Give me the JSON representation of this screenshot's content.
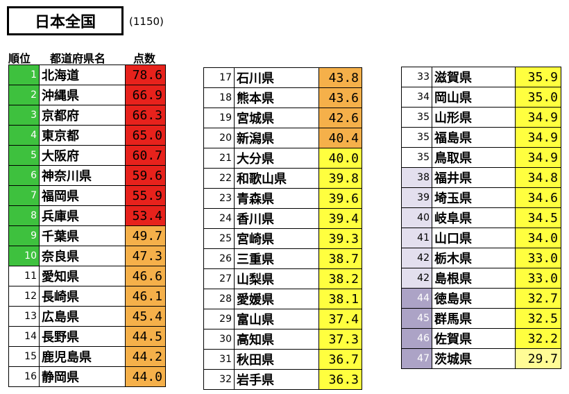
{
  "title": "日本全国",
  "total": "(1150)",
  "headers": {
    "rank": "順位",
    "prefecture": "都道府県名",
    "score": "点数"
  },
  "colors": {
    "top10_rank": "#3ec13e",
    "high_score": "#e7221c",
    "mid_score": "#f5b04a",
    "low_score": "#ffff3f",
    "lowest_score": "#fffc96",
    "bottom_rank_light": "#e3dfee",
    "bottom_rank_dark": "#aca3c6"
  },
  "columns": [
    {
      "rows": [
        {
          "rank": "1",
          "pref": "北海道",
          "score": "78.6",
          "rc": "g",
          "sc": "r"
        },
        {
          "rank": "2",
          "pref": "沖縄県",
          "score": "66.9",
          "rc": "g",
          "sc": "r"
        },
        {
          "rank": "3",
          "pref": "京都府",
          "score": "66.3",
          "rc": "g",
          "sc": "r"
        },
        {
          "rank": "4",
          "pref": "東京都",
          "score": "65.0",
          "rc": "g",
          "sc": "r"
        },
        {
          "rank": "5",
          "pref": "大阪府",
          "score": "60.7",
          "rc": "g",
          "sc": "r"
        },
        {
          "rank": "6",
          "pref": "神奈川県",
          "score": "59.6",
          "rc": "g",
          "sc": "r"
        },
        {
          "rank": "7",
          "pref": "福岡県",
          "score": "55.9",
          "rc": "g",
          "sc": "r"
        },
        {
          "rank": "8",
          "pref": "兵庫県",
          "score": "53.4",
          "rc": "g",
          "sc": "r"
        },
        {
          "rank": "9",
          "pref": "千葉県",
          "score": "49.7",
          "rc": "g",
          "sc": "o"
        },
        {
          "rank": "10",
          "pref": "奈良県",
          "score": "47.3",
          "rc": "g",
          "sc": "o"
        },
        {
          "rank": "11",
          "pref": "愛知県",
          "score": "46.6",
          "rc": "",
          "sc": "o"
        },
        {
          "rank": "12",
          "pref": "長崎県",
          "score": "46.1",
          "rc": "",
          "sc": "o"
        },
        {
          "rank": "13",
          "pref": "広島県",
          "score": "45.4",
          "rc": "",
          "sc": "o"
        },
        {
          "rank": "14",
          "pref": "長野県",
          "score": "44.5",
          "rc": "",
          "sc": "o"
        },
        {
          "rank": "15",
          "pref": "鹿児島県",
          "score": "44.2",
          "rc": "",
          "sc": "o"
        },
        {
          "rank": "16",
          "pref": "静岡県",
          "score": "44.0",
          "rc": "",
          "sc": "o"
        }
      ]
    },
    {
      "rows": [
        {
          "rank": "17",
          "pref": "石川県",
          "score": "43.8",
          "rc": "",
          "sc": "o"
        },
        {
          "rank": "18",
          "pref": "熊本県",
          "score": "43.6",
          "rc": "",
          "sc": "o"
        },
        {
          "rank": "19",
          "pref": "宮城県",
          "score": "42.6",
          "rc": "",
          "sc": "o"
        },
        {
          "rank": "20",
          "pref": "新潟県",
          "score": "40.4",
          "rc": "",
          "sc": "o"
        },
        {
          "rank": "21",
          "pref": "大分県",
          "score": "40.0",
          "rc": "",
          "sc": "y"
        },
        {
          "rank": "22",
          "pref": "和歌山県",
          "score": "39.8",
          "rc": "",
          "sc": "y"
        },
        {
          "rank": "23",
          "pref": "青森県",
          "score": "39.6",
          "rc": "",
          "sc": "y"
        },
        {
          "rank": "24",
          "pref": "香川県",
          "score": "39.4",
          "rc": "",
          "sc": "y"
        },
        {
          "rank": "25",
          "pref": "宮崎県",
          "score": "39.3",
          "rc": "",
          "sc": "y"
        },
        {
          "rank": "26",
          "pref": "三重県",
          "score": "38.7",
          "rc": "",
          "sc": "y"
        },
        {
          "rank": "27",
          "pref": "山梨県",
          "score": "38.2",
          "rc": "",
          "sc": "y"
        },
        {
          "rank": "28",
          "pref": "愛媛県",
          "score": "38.1",
          "rc": "",
          "sc": "y"
        },
        {
          "rank": "29",
          "pref": "富山県",
          "score": "37.4",
          "rc": "",
          "sc": "y"
        },
        {
          "rank": "30",
          "pref": "高知県",
          "score": "37.3",
          "rc": "",
          "sc": "y"
        },
        {
          "rank": "31",
          "pref": "秋田県",
          "score": "36.7",
          "rc": "",
          "sc": "y"
        },
        {
          "rank": "32",
          "pref": "岩手県",
          "score": "36.3",
          "rc": "",
          "sc": "y"
        }
      ]
    },
    {
      "rows": [
        {
          "rank": "33",
          "pref": "滋賀県",
          "score": "35.9",
          "rc": "",
          "sc": "y"
        },
        {
          "rank": "34",
          "pref": "岡山県",
          "score": "35.0",
          "rc": "",
          "sc": "y"
        },
        {
          "rank": "35",
          "pref": "山形県",
          "score": "34.9",
          "rc": "",
          "sc": "y"
        },
        {
          "rank": "35",
          "pref": "福島県",
          "score": "34.9",
          "rc": "",
          "sc": "y"
        },
        {
          "rank": "35",
          "pref": "鳥取県",
          "score": "34.9",
          "rc": "",
          "sc": "y"
        },
        {
          "rank": "38",
          "pref": "福井県",
          "score": "34.8",
          "rc": "lv",
          "sc": "y"
        },
        {
          "rank": "39",
          "pref": "埼玉県",
          "score": "34.6",
          "rc": "lv",
          "sc": "y"
        },
        {
          "rank": "40",
          "pref": "岐阜県",
          "score": "34.5",
          "rc": "lv",
          "sc": "y"
        },
        {
          "rank": "41",
          "pref": "山口県",
          "score": "34.0",
          "rc": "lv",
          "sc": "y"
        },
        {
          "rank": "42",
          "pref": "栃木県",
          "score": "33.0",
          "rc": "lv",
          "sc": "y"
        },
        {
          "rank": "42",
          "pref": "島根県",
          "score": "33.0",
          "rc": "lv",
          "sc": "y"
        },
        {
          "rank": "44",
          "pref": "徳島県",
          "score": "32.7",
          "rc": "v",
          "sc": "y"
        },
        {
          "rank": "45",
          "pref": "群馬県",
          "score": "32.5",
          "rc": "v",
          "sc": "y"
        },
        {
          "rank": "46",
          "pref": "佐賀県",
          "score": "32.2",
          "rc": "v",
          "sc": "y"
        },
        {
          "rank": "47",
          "pref": "茨城県",
          "score": "29.7",
          "rc": "v",
          "sc": "ly"
        }
      ]
    }
  ]
}
